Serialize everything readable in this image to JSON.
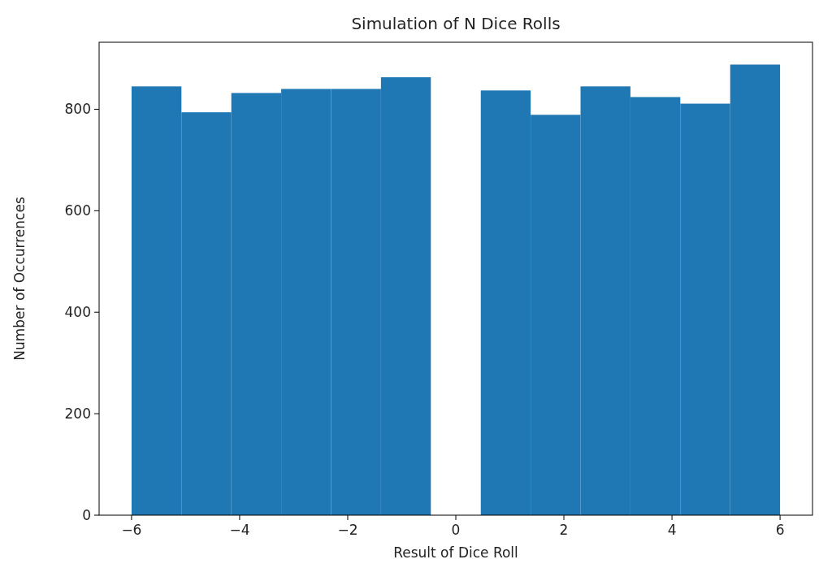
{
  "chart_data": {
    "type": "histogram",
    "title": "Simulation of N Dice Rolls",
    "xlabel": "Result of Dice Roll",
    "ylabel": "Number of Occurrences",
    "bins": [
      -6,
      -5.077,
      -4.154,
      -3.231,
      -2.308,
      -1.385,
      -0.462,
      0.462,
      1.385,
      2.308,
      3.231,
      4.154,
      5.077,
      6
    ],
    "values": [
      845,
      794,
      832,
      840,
      840,
      863,
      0,
      837,
      789,
      845,
      824,
      811,
      888
    ],
    "color": "#1f77b4",
    "xlim": [
      -6.6,
      6.6
    ],
    "xticks": [
      {
        "value": -6,
        "label": "−6"
      },
      {
        "value": -4,
        "label": "−4"
      },
      {
        "value": -2,
        "label": "−2"
      },
      0,
      2,
      4,
      6
    ],
    "ylim": [
      0,
      932
    ],
    "yticks": [
      0,
      200,
      400,
      600,
      800
    ],
    "grid": false
  }
}
